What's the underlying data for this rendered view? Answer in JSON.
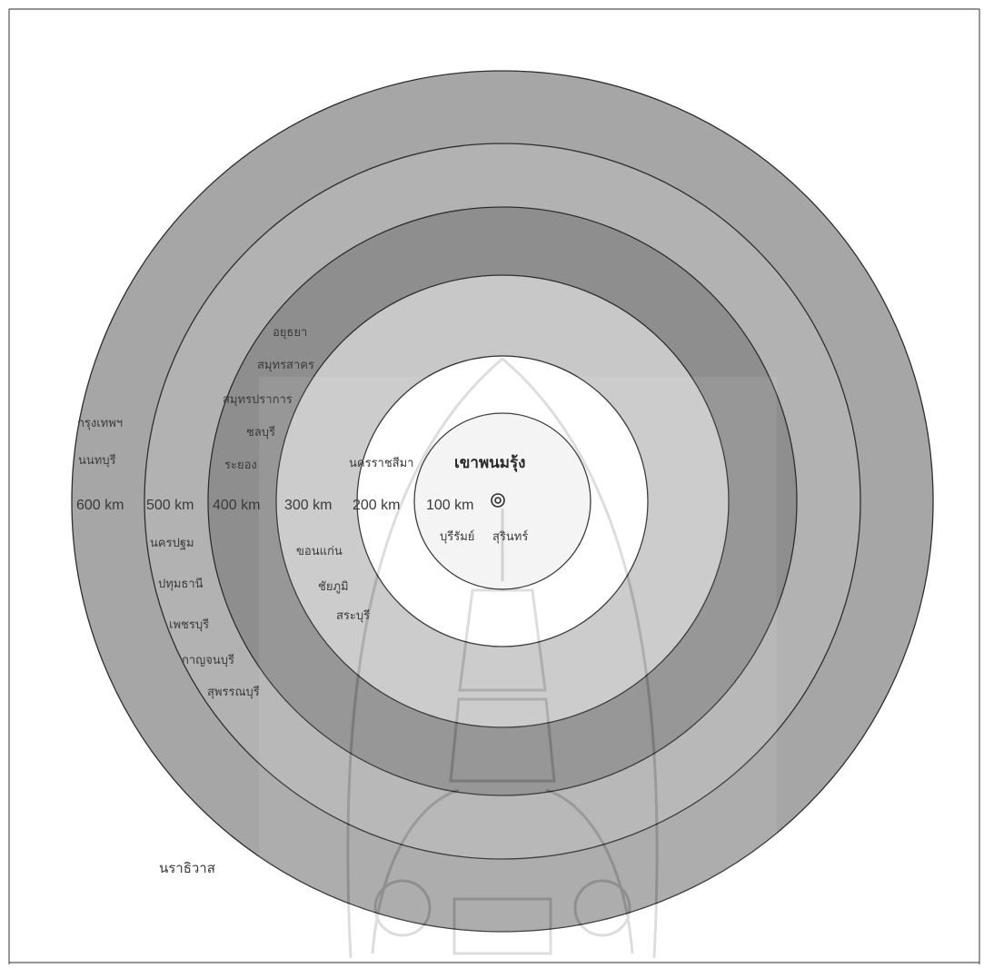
{
  "diagram": {
    "center": {
      "name": "เขาพนมรุ้ง",
      "marker": "double-circle-icon",
      "nearby": [
        "บุรีรัมย์",
        "สุรินทร์"
      ]
    },
    "rings": [
      {
        "distance_label": "100 km",
        "fill": "#f3f3f3",
        "places": []
      },
      {
        "distance_label": "200 km",
        "fill": "#ffffff",
        "places": [
          "นครราชสีมา"
        ]
      },
      {
        "distance_label": "300 km",
        "fill": "#c8c8c8",
        "places": [
          "ขอนแก่น",
          "ชัยภูมิ",
          "สระบุรี"
        ]
      },
      {
        "distance_label": "400 km",
        "fill": "#8e8e8e",
        "places": [
          "อยุธยา",
          "สมุทรสาคร",
          "สมุทรปราการ",
          "ชลบุรี",
          "ระยอง"
        ]
      },
      {
        "distance_label": "500 km",
        "fill": "#b2b2b2",
        "places": [
          "นครปฐม",
          "ปทุมธานี",
          "เพชรบุรี",
          "กาญจนบุรี",
          "สุพรรณบุรี"
        ]
      },
      {
        "distance_label": "600 km",
        "fill": "#a6a6a6",
        "places": [
          "กรุงเทพฯ",
          "นนทบุรี"
        ]
      }
    ],
    "outside": [
      "นราธิวาส"
    ],
    "colors": {
      "stroke": "#2e2e2e",
      "frame": "#555555",
      "text": "#3a3a3a"
    }
  }
}
